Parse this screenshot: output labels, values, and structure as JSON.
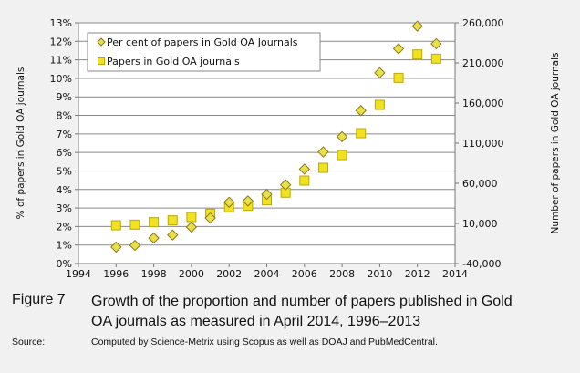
{
  "chart_data": {
    "type": "scatter",
    "xlabel": "",
    "ylabel": "% of papers in Gold OA journals",
    "y2label": "Number of papers in Gold OA journals",
    "xlim": [
      1994,
      2014
    ],
    "ylim": [
      0,
      13
    ],
    "y2lim": [
      -40000,
      260000
    ],
    "xticks": [
      "1994",
      "1996",
      "1998",
      "2000",
      "2002",
      "2004",
      "2006",
      "2008",
      "2010",
      "2012",
      "2014"
    ],
    "yticks": [
      "0%",
      "1%",
      "2%",
      "3%",
      "4%",
      "5%",
      "6%",
      "7%",
      "8%",
      "9%",
      "10%",
      "11%",
      "12%",
      "13%"
    ],
    "y2ticks": [
      "-40,000",
      "10,000",
      "60,000",
      "110,000",
      "160,000",
      "210,000",
      "260,000"
    ],
    "grid": true,
    "legend": "top-left",
    "x": [
      1996,
      1997,
      1998,
      1999,
      2000,
      2001,
      2002,
      2003,
      2004,
      2005,
      2006,
      2007,
      2008,
      2009,
      2010,
      2011,
      2012,
      2013
    ],
    "series": [
      {
        "name": "Per cent of papers in Gold OA Journals",
        "marker": "diamond",
        "axis": "left",
        "color": "#e8e04a",
        "values": [
          0.89,
          0.98,
          1.38,
          1.54,
          1.97,
          2.46,
          3.31,
          3.38,
          3.74,
          4.25,
          5.1,
          6.03,
          6.85,
          8.26,
          10.3,
          11.6,
          12.82,
          11.87
        ]
      },
      {
        "name": "Papers in Gold OA journals",
        "marker": "square",
        "axis": "right",
        "color": "#f0e21c",
        "values": [
          7700,
          8500,
          11500,
          13800,
          18000,
          22200,
          30100,
          32000,
          38800,
          48300,
          63400,
          79300,
          95200,
          122500,
          157700,
          191400,
          220600,
          215300
        ]
      }
    ]
  },
  "caption": {
    "figure_label": "Figure 7",
    "title": "Growth of the proportion and number of papers published in Gold OA journals as measured in April 2014, 1996–2013",
    "source_label": "Source:",
    "source_text": "Computed by Science-Metrix using Scopus as well as DOAJ and PubMedCentral."
  }
}
